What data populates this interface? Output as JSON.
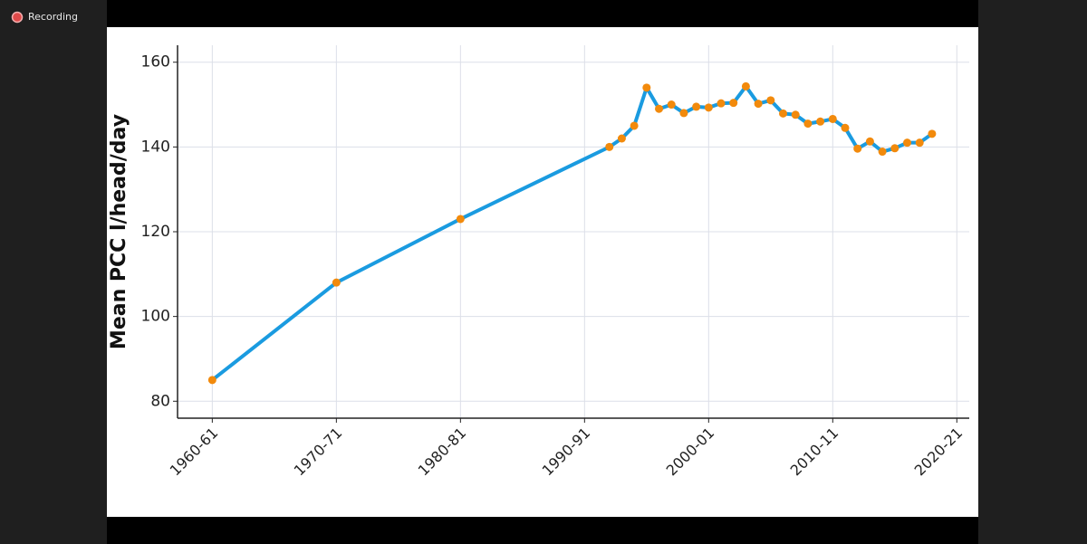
{
  "recording_label": "Recording",
  "chart_data": {
    "type": "line",
    "y_label": "Mean PCC l/head/day",
    "x": [
      1960,
      1970,
      1980,
      1992,
      1993,
      1994,
      1995,
      1996,
      1997,
      1998,
      1999,
      2000,
      2001,
      2002,
      2003,
      2004,
      2005,
      2006,
      2007,
      2008,
      2009,
      2010,
      2011,
      2012,
      2013,
      2014,
      2015,
      2016,
      2017,
      2018
    ],
    "series": [
      {
        "color": "#1a9be0",
        "marker_color": "#f28a0c",
        "values": [
          85,
          108,
          123,
          140,
          142,
          145,
          154,
          149,
          150,
          148,
          149.5,
          149.3,
          150.3,
          150.4,
          154.3,
          150.2,
          151,
          147.9,
          147.6,
          145.5,
          146,
          146.6,
          144.5,
          139.6,
          141.3,
          138.9,
          139.7,
          141,
          141,
          143.1
        ]
      }
    ],
    "xlim": [
      1957.2,
      2021
    ],
    "ylim": [
      76,
      164
    ],
    "xticks": [
      {
        "value": 1960,
        "label": "1960-61"
      },
      {
        "value": 1970,
        "label": "1970-71"
      },
      {
        "value": 1980,
        "label": "1980-81"
      },
      {
        "value": 1990,
        "label": "1990-91"
      },
      {
        "value": 2000,
        "label": "2000-01"
      },
      {
        "value": 2010,
        "label": "2010-11"
      },
      {
        "value": 2020,
        "label": "2020-21"
      }
    ],
    "yticks": [
      80,
      100,
      120,
      140,
      160
    ],
    "grid": true
  }
}
